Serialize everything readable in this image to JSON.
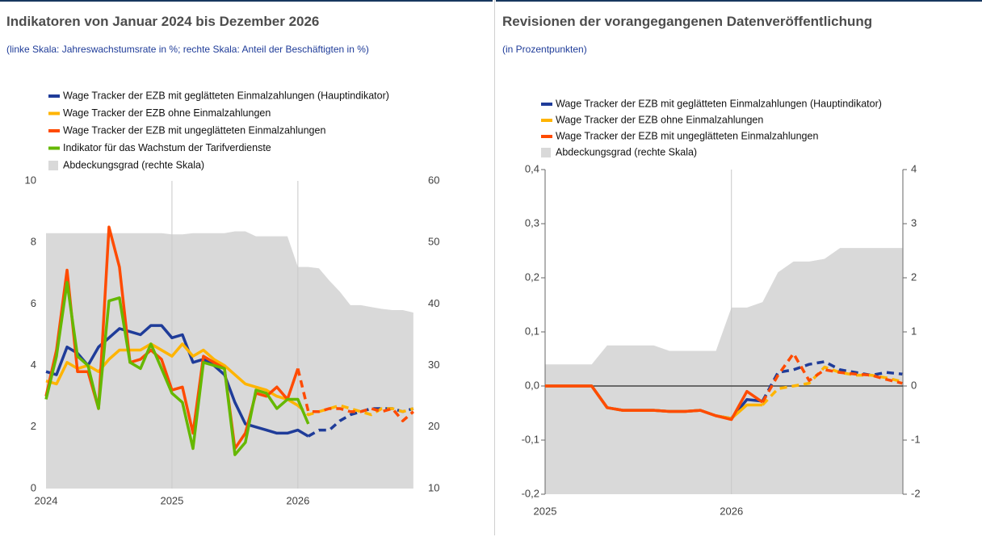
{
  "chart_data": [
    {
      "type": "line",
      "title": "Indikatoren von Januar 2024 bis Dezember 2026",
      "subtitle": "(linke Skala: Jahreswachstumsrate in %; rechte Skala: Anteil der Beschäftigten in %)",
      "x": [
        2024,
        2024.083,
        2024.167,
        2024.25,
        2024.333,
        2024.417,
        2024.5,
        2024.583,
        2024.667,
        2024.75,
        2024.833,
        2024.917,
        2025,
        2025.083,
        2025.167,
        2025.25,
        2025.333,
        2025.417,
        2025.5,
        2025.583,
        2025.667,
        2025.75,
        2025.833,
        2025.917,
        2026,
        2026.083,
        2026.167,
        2026.25,
        2026.333,
        2026.417,
        2026.5,
        2026.583,
        2026.667,
        2026.75,
        2026.833,
        2026.917
      ],
      "xlim": [
        2024,
        2026.95
      ],
      "xticks": [
        2024,
        2025,
        2026
      ],
      "ylim": [
        0,
        10
      ],
      "yticks": [
        0,
        2,
        4,
        6,
        8,
        10
      ],
      "y2lim": [
        10,
        60
      ],
      "y2ticks": [
        10,
        20,
        30,
        40,
        50,
        60
      ],
      "x_grid": true,
      "series": [
        {
          "name": "Abdeckungsgrad (rechte Skala)",
          "kind": "area",
          "axis": "y2",
          "color": "#d9d9d9",
          "values": [
            51.5,
            51.5,
            51.5,
            51.5,
            51.5,
            51.5,
            51.5,
            51.5,
            51.5,
            51.5,
            51.5,
            51.5,
            51.3,
            51.3,
            51.5,
            51.5,
            51.5,
            51.5,
            51.8,
            51.8,
            51.0,
            51.0,
            51.0,
            51.0,
            46.0,
            46.0,
            45.8,
            43.8,
            42.0,
            39.8,
            39.8,
            39.5,
            39.2,
            39.0,
            39.0,
            38.6
          ]
        },
        {
          "name": "Wage Tracker der EZB mit geglätteten Einmalzahlungen (Hauptindikator)",
          "color": "#1f3c99",
          "dashed_from": 2026.083,
          "values": [
            3.8,
            3.7,
            4.6,
            4.4,
            4.0,
            4.6,
            4.9,
            5.2,
            5.1,
            5.0,
            5.3,
            5.3,
            4.9,
            5.0,
            4.1,
            4.2,
            4.0,
            3.7,
            2.8,
            2.1,
            2.0,
            1.9,
            1.8,
            1.8,
            1.9,
            1.7,
            1.9,
            1.9,
            2.2,
            2.4,
            2.5,
            2.6,
            2.6,
            2.6,
            2.5,
            2.6
          ]
        },
        {
          "name": "Wage Tracker der EZB ohne Einmalzahlungen",
          "color": "#ffb400",
          "dashed_from": 2026,
          "values": [
            3.5,
            3.4,
            4.1,
            3.9,
            4.0,
            3.8,
            4.2,
            4.5,
            4.5,
            4.5,
            4.7,
            4.5,
            4.3,
            4.7,
            4.3,
            4.5,
            4.2,
            4.0,
            3.7,
            3.4,
            3.3,
            3.2,
            3.0,
            2.9,
            2.7,
            2.4,
            2.5,
            2.6,
            2.7,
            2.6,
            2.5,
            2.4,
            2.6,
            2.6,
            2.5,
            2.6
          ]
        },
        {
          "name": "Wage Tracker der EZB mit ungeglätteten Einmalzahlungen",
          "color": "#ff4b00",
          "dashed_from": 2026,
          "values": [
            3.0,
            4.5,
            7.1,
            3.8,
            3.8,
            2.6,
            8.5,
            7.2,
            4.1,
            4.2,
            4.5,
            4.2,
            3.2,
            3.3,
            1.8,
            4.3,
            4.1,
            3.9,
            1.3,
            1.8,
            3.1,
            3.0,
            3.3,
            2.9,
            3.9,
            2.5,
            2.5,
            2.6,
            2.6,
            2.5,
            2.5,
            2.6,
            2.5,
            2.6,
            2.2,
            2.5
          ]
        },
        {
          "name": "Indikator für das Wachstum der Tarifverdienste",
          "color": "#65b800",
          "values": [
            2.9,
            4.3,
            6.7,
            4.3,
            4.0,
            2.6,
            6.1,
            6.2,
            4.1,
            3.9,
            4.7,
            3.9,
            3.1,
            2.8,
            1.3,
            4.1,
            4.0,
            3.9,
            1.1,
            1.5,
            3.2,
            3.1,
            2.6,
            2.9,
            2.9,
            2.1,
            null,
            null,
            null,
            null,
            null,
            null,
            null,
            null,
            null,
            null
          ]
        }
      ]
    },
    {
      "type": "line",
      "title": "Revisionen der vorangegangenen Datenveröffentlichung",
      "subtitle": "(in Prozentpunkten)",
      "x": [
        2025,
        2025.083,
        2025.167,
        2025.25,
        2025.333,
        2025.417,
        2025.5,
        2025.583,
        2025.667,
        2025.75,
        2025.833,
        2025.917,
        2026,
        2026.083,
        2026.167,
        2026.25,
        2026.333,
        2026.417,
        2026.5,
        2026.583,
        2026.667,
        2026.75,
        2026.833,
        2026.917
      ],
      "xlim": [
        2025,
        2026.92
      ],
      "xticks": [
        2025,
        2026
      ],
      "ylim": [
        -0.2,
        0.4
      ],
      "yticks": [
        {
          "value": -0.2,
          "label": "-0,2"
        },
        {
          "value": -0.1,
          "label": "-0,1"
        },
        {
          "value": 0,
          "label": "0,0"
        },
        {
          "value": 0.1,
          "label": "0,1"
        },
        {
          "value": 0.2,
          "label": "0,2"
        },
        {
          "value": 0.3,
          "label": "0,3"
        },
        {
          "value": 0.4,
          "label": "0,4"
        }
      ],
      "y2lim": [
        -2,
        4
      ],
      "y2ticks": [
        -2,
        -1,
        0,
        1,
        2,
        3,
        4
      ],
      "x_grid": true,
      "axis_lines": true,
      "zero_line": true,
      "series": [
        {
          "name": "Abdeckungsgrad (rechte Skala)",
          "kind": "area",
          "axis": "y2",
          "color": "#d9d9d9",
          "values": [
            0.4,
            0.4,
            0.4,
            0.4,
            0.75,
            0.75,
            0.75,
            0.75,
            0.65,
            0.65,
            0.65,
            0.65,
            1.45,
            1.45,
            1.55,
            2.1,
            2.3,
            2.3,
            2.35,
            2.55,
            2.55,
            2.55,
            2.55,
            2.55
          ]
        },
        {
          "name": "Wage Tracker der EZB mit geglätteten Einmalzahlungen (Hauptindikator)",
          "color": "#1f3c99",
          "dashed_from": 2026.167,
          "values": [
            0,
            0,
            0,
            0,
            -0.04,
            -0.045,
            -0.045,
            -0.045,
            -0.047,
            -0.047,
            -0.045,
            -0.055,
            -0.06,
            -0.025,
            -0.028,
            0.025,
            0.03,
            0.04,
            0.045,
            0.03,
            0.025,
            0.02,
            0.025,
            0.022
          ]
        },
        {
          "name": "Wage Tracker der EZB ohne Einmalzahlungen",
          "color": "#ffb400",
          "dashed_from": 2026.167,
          "values": [
            0,
            0,
            0,
            0,
            -0.04,
            -0.045,
            -0.045,
            -0.045,
            -0.047,
            -0.047,
            -0.045,
            -0.055,
            -0.06,
            -0.035,
            -0.035,
            -0.005,
            0,
            0.005,
            0.035,
            0.025,
            0.02,
            0.02,
            0.015,
            0.008
          ]
        },
        {
          "name": "Wage Tracker der EZB mit ungeglätteten Einmalzahlungen",
          "color": "#ff4b00",
          "dashed_from": 2026.167,
          "values": [
            0,
            0,
            0,
            0,
            -0.04,
            -0.045,
            -0.045,
            -0.045,
            -0.047,
            -0.047,
            -0.045,
            -0.055,
            -0.062,
            -0.01,
            -0.03,
            0.02,
            0.06,
            0.01,
            0.03,
            0.025,
            0.022,
            0.02,
            0.012,
            0.005
          ]
        }
      ]
    }
  ]
}
